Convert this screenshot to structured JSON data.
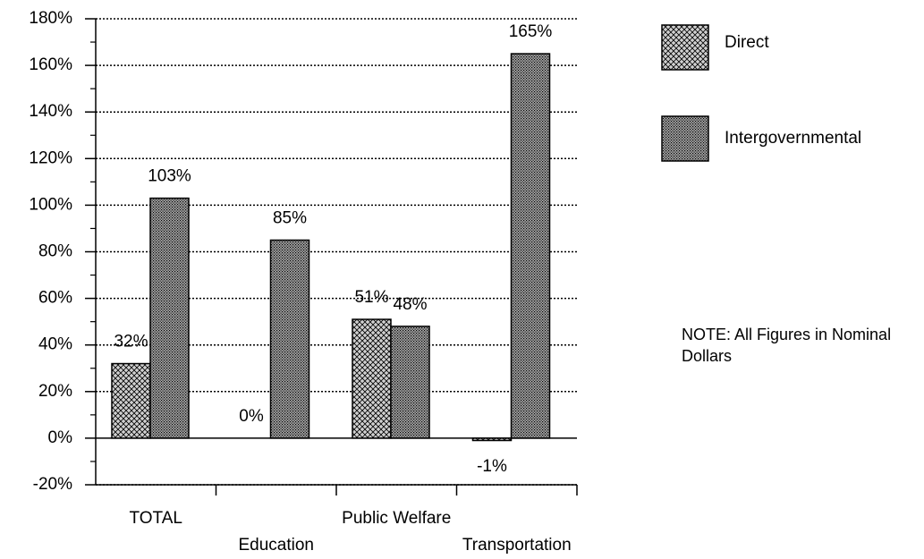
{
  "chart_data": {
    "type": "bar",
    "categories": [
      "TOTAL",
      "Education",
      "Public Welfare",
      "Transportation"
    ],
    "series": [
      {
        "name": "Direct",
        "color": "#d0d0d0",
        "values": [
          32,
          0,
          51,
          -1
        ],
        "value_labels": [
          "32%",
          "0%",
          "51%",
          "-1%"
        ]
      },
      {
        "name": "Intergovernmental",
        "color": "#a8a8a8",
        "values": [
          103,
          85,
          48,
          165
        ],
        "value_labels": [
          "103%",
          "85%",
          "48%",
          "165%"
        ]
      }
    ],
    "ylim": [
      -20,
      180
    ],
    "yticks": [
      {
        "value": -20,
        "label": "-20%"
      },
      {
        "value": 0,
        "label": "0%"
      },
      {
        "value": 20,
        "label": "20%"
      },
      {
        "value": 40,
        "label": "40%"
      },
      {
        "value": 60,
        "label": "60%"
      },
      {
        "value": 80,
        "label": "80%"
      },
      {
        "value": 100,
        "label": "100%"
      },
      {
        "value": 120,
        "label": "120%"
      },
      {
        "value": 140,
        "label": "140%"
      },
      {
        "value": 160,
        "label": "160%"
      },
      {
        "value": 180,
        "label": "180%"
      }
    ],
    "grid": true,
    "legend": "right",
    "annotation": "NOTE:  All Figures in Nominal Dollars"
  }
}
